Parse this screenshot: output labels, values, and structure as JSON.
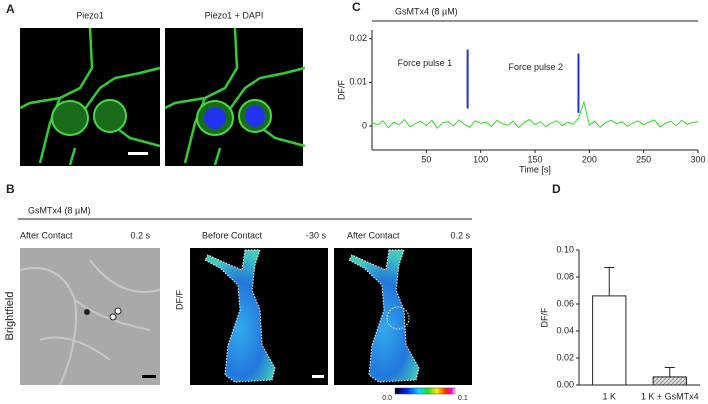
{
  "panel_a": {
    "label": "A",
    "titles": [
      "Piezo1",
      "Piezo1 + DAPI"
    ]
  },
  "panel_b": {
    "label": "B",
    "treatment": "GsMTx4 (8 µM)",
    "images": [
      {
        "title": "After Contact",
        "time": "0.2 s"
      },
      {
        "title": "Before Contact",
        "time": "-30 s"
      },
      {
        "title": "After Contact",
        "time": "0.2 s"
      }
    ],
    "side_labels": [
      "Brightfield",
      "DF/F"
    ],
    "colorbar": {
      "min": "0.0",
      "max": "0.1"
    }
  },
  "chart_data": [
    {
      "type": "line",
      "label": "C",
      "title": "GsMTx4 (8 µM)",
      "xlabel": "Time [s]",
      "ylabel": "DF/F",
      "color": "#33dd22",
      "x": [
        0,
        5,
        10,
        15,
        20,
        25,
        30,
        35,
        40,
        45,
        50,
        55,
        60,
        65,
        70,
        75,
        80,
        85,
        90,
        95,
        100,
        105,
        110,
        115,
        120,
        125,
        130,
        135,
        140,
        145,
        150,
        155,
        160,
        165,
        170,
        175,
        180,
        185,
        190,
        195,
        200,
        205,
        210,
        215,
        220,
        225,
        230,
        235,
        240,
        245,
        250,
        255,
        260,
        265,
        270,
        275,
        280,
        285,
        290,
        295,
        300
      ],
      "values": [
        0.0008,
        0.0002,
        0.0012,
        -0.0004,
        0.0009,
        0.0003,
        0.0015,
        -0.0002,
        0.0006,
        0.0011,
        0.0001,
        0.0013,
        -0.0005,
        0.0007,
        0.001,
        0.0,
        0.0014,
        0.0004,
        -0.0003,
        0.0012,
        0.0006,
        0.0009,
        -0.0001,
        0.0013,
        0.0005,
        0.0002,
        0.0011,
        -0.0004,
        0.0008,
        0.0015,
        0.0003,
        0.001,
        -0.0002,
        0.0007,
        0.0012,
        0.0001,
        0.0009,
        0.0004,
        0.0018,
        0.0055,
        0.0002,
        0.0011,
        -0.0003,
        0.0008,
        0.0013,
        0.0005,
        0.001,
        -0.0001,
        0.0007,
        0.0012,
        0.0003,
        0.0009,
        0.0014,
        -0.0002,
        0.0006,
        0.0011,
        0.0001,
        0.0013,
        0.0004,
        0.0008,
        0.001
      ],
      "xlim": [
        0,
        300
      ],
      "xticks": [
        50,
        100,
        150,
        200,
        250,
        300
      ],
      "ylim": [
        -0.0055,
        0.022
      ],
      "yticks": [
        0,
        0.01,
        0.02
      ],
      "annotations": [
        {
          "text": "Force pulse 1",
          "x": 88,
          "y_start": 0.004,
          "y_end": 0.0175,
          "color": "#2233cc"
        },
        {
          "text": "Force pulse 2",
          "x": 190,
          "y_start": 0.003,
          "y_end": 0.0166,
          "color": "#2233cc"
        }
      ]
    },
    {
      "type": "bar",
      "label": "D",
      "ylabel": "DF/F",
      "categories": [
        "1 K",
        "1 K + GsMTx4"
      ],
      "values": [
        0.066,
        0.006
      ],
      "errors": [
        0.021,
        0.007
      ],
      "colors": [
        "#ffffff",
        "#bbbbbb"
      ],
      "ylim": [
        0,
        0.1
      ],
      "yticks": [
        {
          "value": 0,
          "label": "0.00"
        },
        0.02,
        0.04,
        0.06,
        0.08,
        {
          "value": 0.1,
          "label": "0.10"
        }
      ]
    }
  ]
}
